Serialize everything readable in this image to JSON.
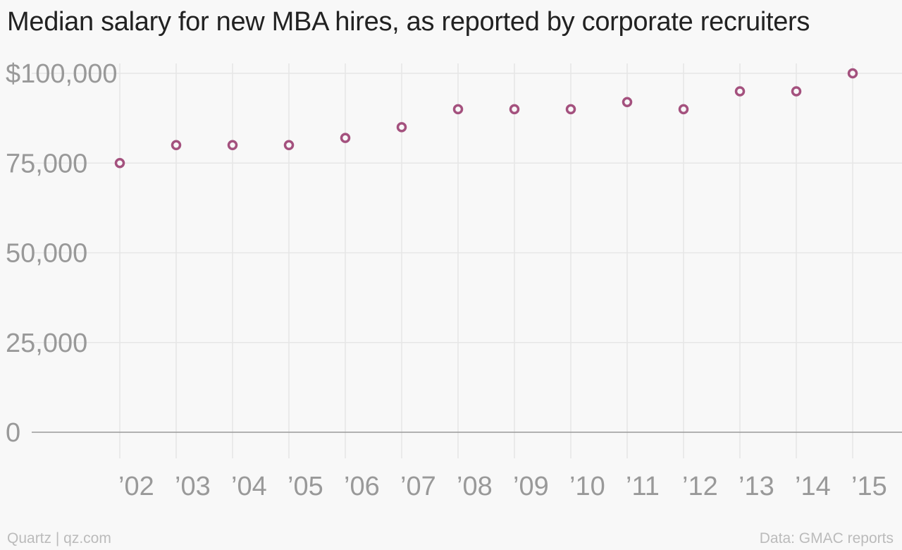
{
  "title": "Median salary for new MBA hires, as reported by corporate recruiters",
  "footer": {
    "brand": "Quartz | qz.com",
    "source": "Data: GMAC reports"
  },
  "colors": {
    "marker": "#a4517e",
    "gridline": "#e6e6e6",
    "baseline": "#999999",
    "tick_text": "#999999"
  },
  "chart_data": {
    "type": "scatter",
    "title": "Median salary for new MBA hires, as reported by corporate recruiters",
    "xlabel": "",
    "ylabel": "",
    "x": [
      "’02",
      "’03",
      "’04",
      "’05",
      "’06",
      "’07",
      "’08",
      "’09",
      "’10",
      "’11",
      "’12",
      "’13",
      "’14",
      "’15"
    ],
    "y": [
      75000,
      80000,
      80000,
      80000,
      82000,
      85000,
      90000,
      90000,
      90000,
      92000,
      90000,
      95000,
      95000,
      100000
    ],
    "ylim": [
      0,
      100000
    ],
    "yticks": [
      0,
      25000,
      50000,
      75000,
      100000
    ],
    "ytick_labels": [
      "0",
      "25,000",
      "50,000",
      "75,000",
      "$100,000"
    ],
    "grid": true,
    "legend": "none",
    "marker": "hollow-circle"
  }
}
